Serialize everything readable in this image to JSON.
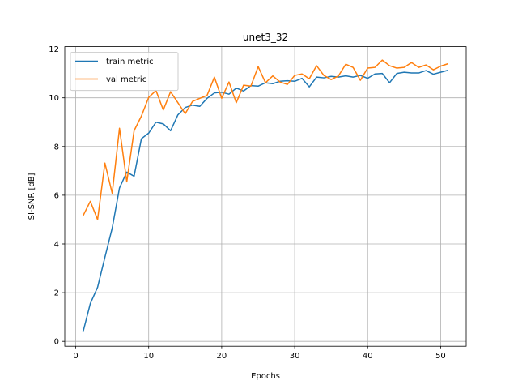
{
  "chart_data": {
    "type": "line",
    "title": "unet3_32",
    "xlabel": "Epochs",
    "ylabel": "SI-SNR [dB]",
    "xlim": [
      -1.5,
      53.5
    ],
    "ylim": [
      -0.2,
      12.1
    ],
    "xticks": [
      "0",
      "10",
      "20",
      "30",
      "40",
      "50"
    ],
    "yticks": [
      "0",
      "2",
      "4",
      "6",
      "8",
      "10",
      "12"
    ],
    "grid": true,
    "legend_position": "top-left",
    "x": [
      1,
      2,
      3,
      4,
      5,
      6,
      7,
      8,
      9,
      10,
      11,
      12,
      13,
      14,
      15,
      16,
      17,
      18,
      19,
      20,
      21,
      22,
      23,
      24,
      25,
      26,
      27,
      28,
      29,
      30,
      31,
      32,
      33,
      34,
      35,
      36,
      37,
      38,
      39,
      40,
      41,
      42,
      43,
      44,
      45,
      46,
      47,
      48,
      49,
      50,
      51
    ],
    "series": [
      {
        "name": "train metric",
        "color": "#1f77b4",
        "values": [
          0.38,
          1.55,
          2.22,
          3.45,
          4.65,
          6.3,
          6.95,
          6.78,
          8.32,
          8.55,
          9.0,
          8.93,
          8.65,
          9.3,
          9.6,
          9.7,
          9.65,
          9.98,
          10.2,
          10.23,
          10.15,
          10.4,
          10.28,
          10.5,
          10.48,
          10.62,
          10.58,
          10.68,
          10.7,
          10.68,
          10.8,
          10.45,
          10.85,
          10.82,
          10.88,
          10.85,
          10.9,
          10.85,
          10.92,
          10.8,
          10.98,
          11.0,
          10.62,
          11.0,
          11.05,
          11.02,
          11.02,
          11.12,
          10.97,
          11.05,
          11.13
        ]
      },
      {
        "name": "val metric",
        "color": "#ff7f0e",
        "values": [
          5.15,
          5.75,
          5.0,
          7.32,
          6.08,
          8.75,
          6.55,
          8.65,
          9.25,
          10.02,
          10.3,
          9.5,
          10.25,
          9.8,
          9.35,
          9.85,
          9.98,
          10.1,
          10.85,
          9.98,
          10.65,
          9.8,
          10.52,
          10.48,
          11.28,
          10.62,
          10.9,
          10.65,
          10.55,
          10.92,
          10.98,
          10.78,
          11.32,
          10.92,
          10.75,
          10.9,
          11.38,
          11.25,
          10.72,
          11.22,
          11.25,
          11.55,
          11.32,
          11.22,
          11.25,
          11.45,
          11.25,
          11.35,
          11.15,
          11.3,
          11.4
        ]
      }
    ]
  }
}
